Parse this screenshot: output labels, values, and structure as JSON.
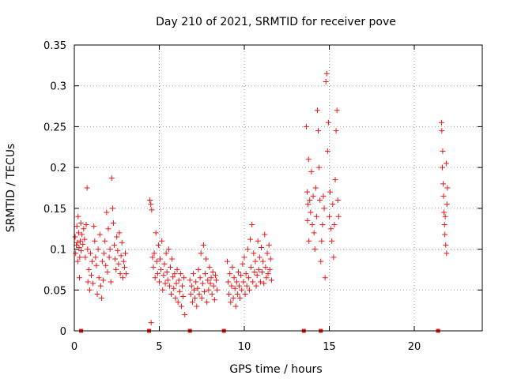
{
  "chart_data": {
    "type": "scatter",
    "title": "Day 210 of 2021, SRMTID for receiver pove",
    "xlabel": "GPS time / hours",
    "ylabel": "SRMTID / TECUs",
    "xlim": [
      0,
      24
    ],
    "ylim": [
      0,
      0.35
    ],
    "x_ticks": [
      0,
      5,
      10,
      15,
      20
    ],
    "y_ticks": [
      0,
      0.05,
      0.1,
      0.15,
      0.2,
      0.25,
      0.3,
      0.35
    ],
    "x_tick_labels": [
      "0",
      "5",
      "10",
      "15",
      "20"
    ],
    "y_tick_labels": [
      "0",
      "0.05",
      "0.1",
      "0.15",
      "0.2",
      "0.25",
      "0.3",
      "0.35"
    ],
    "grid": true,
    "marker": "+",
    "color": "#e41a1c",
    "series": [
      {
        "name": "SRMTID",
        "points": [
          [
            0.05,
            0.115
          ],
          [
            0.08,
            0.095
          ],
          [
            0.12,
            0.105
          ],
          [
            0.15,
            0.128
          ],
          [
            0.18,
            0.108
          ],
          [
            0.2,
            0.085
          ],
          [
            0.22,
            0.14
          ],
          [
            0.25,
            0.12
          ],
          [
            0.28,
            0.102
          ],
          [
            0.3,
            0.065
          ],
          [
            0.32,
            0.09
          ],
          [
            0.35,
            0.11
          ],
          [
            0.38,
            0.132
          ],
          [
            0.4,
            0.098
          ],
          [
            0.45,
            0.118
          ],
          [
            0.5,
            0.106
          ],
          [
            0.55,
            0.125
          ],
          [
            0.6,
            0.112
          ],
          [
            0.65,
            0.09
          ],
          [
            0.7,
            0.13
          ],
          [
            0.75,
            0.175
          ],
          [
            0.78,
            0.1
          ],
          [
            0.8,
            0.06
          ],
          [
            0.85,
            0.075
          ],
          [
            0.9,
            0.05
          ],
          [
            0.95,
            0.095
          ],
          [
            1.0,
            0.068
          ],
          [
            1.05,
            0.085
          ],
          [
            1.1,
            0.058
          ],
          [
            1.15,
            0.128
          ],
          [
            1.2,
            0.11
          ],
          [
            1.25,
            0.09
          ],
          [
            1.3,
            0.08
          ],
          [
            1.35,
            0.045
          ],
          [
            1.4,
            0.1
          ],
          [
            1.45,
            0.065
          ],
          [
            1.5,
            0.118
          ],
          [
            1.55,
            0.055
          ],
          [
            1.6,
            0.04
          ],
          [
            1.65,
            0.085
          ],
          [
            1.7,
            0.062
          ],
          [
            1.75,
            0.095
          ],
          [
            1.8,
            0.11
          ],
          [
            1.85,
            0.08
          ],
          [
            1.9,
            0.145
          ],
          [
            1.95,
            0.072
          ],
          [
            2.0,
            0.125
          ],
          [
            2.05,
            0.09
          ],
          [
            2.1,
            0.1
          ],
          [
            2.15,
            0.06
          ],
          [
            2.2,
            0.187
          ],
          [
            2.25,
            0.15
          ],
          [
            2.3,
            0.132
          ],
          [
            2.35,
            0.105
          ],
          [
            2.4,
            0.088
          ],
          [
            2.45,
            0.075
          ],
          [
            2.5,
            0.115
          ],
          [
            2.55,
            0.098
          ],
          [
            2.6,
            0.082
          ],
          [
            2.65,
            0.12
          ],
          [
            2.7,
            0.07
          ],
          [
            2.75,
            0.092
          ],
          [
            2.8,
            0.108
          ],
          [
            2.85,
            0.065
          ],
          [
            2.9,
            0.085
          ],
          [
            2.95,
            0.078
          ],
          [
            3.0,
            0.095
          ],
          [
            3.05,
            0.07
          ],
          [
            4.45,
            0.16
          ],
          [
            4.5,
            0.155
          ],
          [
            4.52,
            0.01
          ],
          [
            4.55,
            0.148
          ],
          [
            4.6,
            0.09
          ],
          [
            4.65,
            0.078
          ],
          [
            4.7,
            0.095
          ],
          [
            4.75,
            0.065
          ],
          [
            4.8,
            0.12
          ],
          [
            4.85,
            0.085
          ],
          [
            4.9,
            0.07
          ],
          [
            4.95,
            0.105
          ],
          [
            5.0,
            0.06
          ],
          [
            5.05,
            0.088
          ],
          [
            5.1,
            0.075
          ],
          [
            5.15,
            0.11
          ],
          [
            5.2,
            0.05
          ],
          [
            5.25,
            0.068
          ],
          [
            5.3,
            0.082
          ],
          [
            5.35,
            0.058
          ],
          [
            5.4,
            0.095
          ],
          [
            5.45,
            0.072
          ],
          [
            5.5,
            0.062
          ],
          [
            5.55,
            0.1
          ],
          [
            5.6,
            0.055
          ],
          [
            5.65,
            0.078
          ],
          [
            5.7,
            0.045
          ],
          [
            5.75,
            0.088
          ],
          [
            5.8,
            0.066
          ],
          [
            5.85,
            0.052
          ],
          [
            5.9,
            0.07
          ],
          [
            5.95,
            0.04
          ],
          [
            6.0,
            0.058
          ],
          [
            6.05,
            0.075
          ],
          [
            6.1,
            0.035
          ],
          [
            6.15,
            0.062
          ],
          [
            6.2,
            0.048
          ],
          [
            6.25,
            0.07
          ],
          [
            6.3,
            0.03
          ],
          [
            6.35,
            0.055
          ],
          [
            6.4,
            0.042
          ],
          [
            6.45,
            0.065
          ],
          [
            6.5,
            0.02
          ],
          [
            6.8,
            0.062
          ],
          [
            6.85,
            0.045
          ],
          [
            6.9,
            0.055
          ],
          [
            6.95,
            0.035
          ],
          [
            7.0,
            0.07
          ],
          [
            7.05,
            0.05
          ],
          [
            7.1,
            0.04
          ],
          [
            7.15,
            0.06
          ],
          [
            7.2,
            0.03
          ],
          [
            7.25,
            0.052
          ],
          [
            7.3,
            0.075
          ],
          [
            7.35,
            0.045
          ],
          [
            7.4,
            0.065
          ],
          [
            7.45,
            0.095
          ],
          [
            7.5,
            0.04
          ],
          [
            7.55,
            0.058
          ],
          [
            7.6,
            0.105
          ],
          [
            7.65,
            0.048
          ],
          [
            7.7,
            0.07
          ],
          [
            7.75,
            0.088
          ],
          [
            7.8,
            0.035
          ],
          [
            7.85,
            0.062
          ],
          [
            7.9,
            0.05
          ],
          [
            7.95,
            0.078
          ],
          [
            8.0,
            0.058
          ],
          [
            8.05,
            0.065
          ],
          [
            8.1,
            0.045
          ],
          [
            8.15,
            0.072
          ],
          [
            8.2,
            0.055
          ],
          [
            8.25,
            0.038
          ],
          [
            8.3,
            0.068
          ],
          [
            8.35,
            0.062
          ],
          [
            8.4,
            0.05
          ],
          [
            9.0,
            0.085
          ],
          [
            9.05,
            0.06
          ],
          [
            9.1,
            0.045
          ],
          [
            9.15,
            0.07
          ],
          [
            9.2,
            0.035
          ],
          [
            9.25,
            0.055
          ],
          [
            9.3,
            0.078
          ],
          [
            9.35,
            0.04
          ],
          [
            9.4,
            0.065
          ],
          [
            9.45,
            0.052
          ],
          [
            9.5,
            0.03
          ],
          [
            9.55,
            0.06
          ],
          [
            9.6,
            0.045
          ],
          [
            9.65,
            0.072
          ],
          [
            9.7,
            0.055
          ],
          [
            9.75,
            0.04
          ],
          [
            9.8,
            0.068
          ],
          [
            9.85,
            0.05
          ],
          [
            9.9,
            0.082
          ],
          [
            9.95,
            0.06
          ],
          [
            10.0,
            0.09
          ],
          [
            10.05,
            0.045
          ],
          [
            10.1,
            0.07
          ],
          [
            10.15,
            0.055
          ],
          [
            10.2,
            0.1
          ],
          [
            10.25,
            0.065
          ],
          [
            10.3,
            0.05
          ],
          [
            10.35,
            0.112
          ],
          [
            10.4,
            0.078
          ],
          [
            10.45,
            0.13
          ],
          [
            10.5,
            0.06
          ],
          [
            10.55,
            0.095
          ],
          [
            10.6,
            0.072
          ],
          [
            10.65,
            0.085
          ],
          [
            10.7,
            0.055
          ],
          [
            10.75,
            0.068
          ],
          [
            10.8,
            0.11
          ],
          [
            10.85,
            0.075
          ],
          [
            10.9,
            0.09
          ],
          [
            10.95,
            0.06
          ],
          [
            11.0,
            0.102
          ],
          [
            11.05,
            0.072
          ],
          [
            11.1,
            0.085
          ],
          [
            11.15,
            0.058
          ],
          [
            11.2,
            0.118
          ],
          [
            11.25,
            0.078
          ],
          [
            11.3,
            0.065
          ],
          [
            11.35,
            0.095
          ],
          [
            11.4,
            0.07
          ],
          [
            11.45,
            0.105
          ],
          [
            11.5,
            0.075
          ],
          [
            11.55,
            0.088
          ],
          [
            11.6,
            0.062
          ],
          [
            13.65,
            0.25
          ],
          [
            13.7,
            0.17
          ],
          [
            13.72,
            0.135
          ],
          [
            13.75,
            0.155
          ],
          [
            13.78,
            0.21
          ],
          [
            13.8,
            0.11
          ],
          [
            13.85,
            0.16
          ],
          [
            13.9,
            0.145
          ],
          [
            13.95,
            0.195
          ],
          [
            14.0,
            0.13
          ],
          [
            14.05,
            0.165
          ],
          [
            14.1,
            0.12
          ],
          [
            14.15,
            0.1
          ],
          [
            14.2,
            0.175
          ],
          [
            14.25,
            0.14
          ],
          [
            14.3,
            0.27
          ],
          [
            14.35,
            0.245
          ],
          [
            14.4,
            0.2
          ],
          [
            14.45,
            0.16
          ],
          [
            14.5,
            0.085
          ],
          [
            14.55,
            0.11
          ],
          [
            14.6,
            0.13
          ],
          [
            14.65,
            0.165
          ],
          [
            14.7,
            0.15
          ],
          [
            14.75,
            0.065
          ],
          [
            14.8,
            0.305
          ],
          [
            14.85,
            0.315
          ],
          [
            14.9,
            0.22
          ],
          [
            14.95,
            0.255
          ],
          [
            15.0,
            0.14
          ],
          [
            15.05,
            0.17
          ],
          [
            15.1,
            0.125
          ],
          [
            15.15,
            0.11
          ],
          [
            15.2,
            0.155
          ],
          [
            15.25,
            0.09
          ],
          [
            15.3,
            0.13
          ],
          [
            15.35,
            0.185
          ],
          [
            15.4,
            0.245
          ],
          [
            15.45,
            0.27
          ],
          [
            15.5,
            0.16
          ],
          [
            15.55,
            0.14
          ],
          [
            21.6,
            0.255
          ],
          [
            21.62,
            0.245
          ],
          [
            21.65,
            0.2
          ],
          [
            21.67,
            0.22
          ],
          [
            21.7,
            0.18
          ],
          [
            21.72,
            0.165
          ],
          [
            21.75,
            0.145
          ],
          [
            21.78,
            0.13
          ],
          [
            21.8,
            0.118
          ],
          [
            21.82,
            0.14
          ],
          [
            21.85,
            0.105
          ],
          [
            21.88,
            0.205
          ],
          [
            21.9,
            0.095
          ],
          [
            21.92,
            0.155
          ],
          [
            21.95,
            0.175
          ]
        ]
      }
    ],
    "baseline_markers": [
      0.4,
      4.4,
      6.8,
      8.8,
      13.5,
      14.5,
      21.4
    ]
  }
}
